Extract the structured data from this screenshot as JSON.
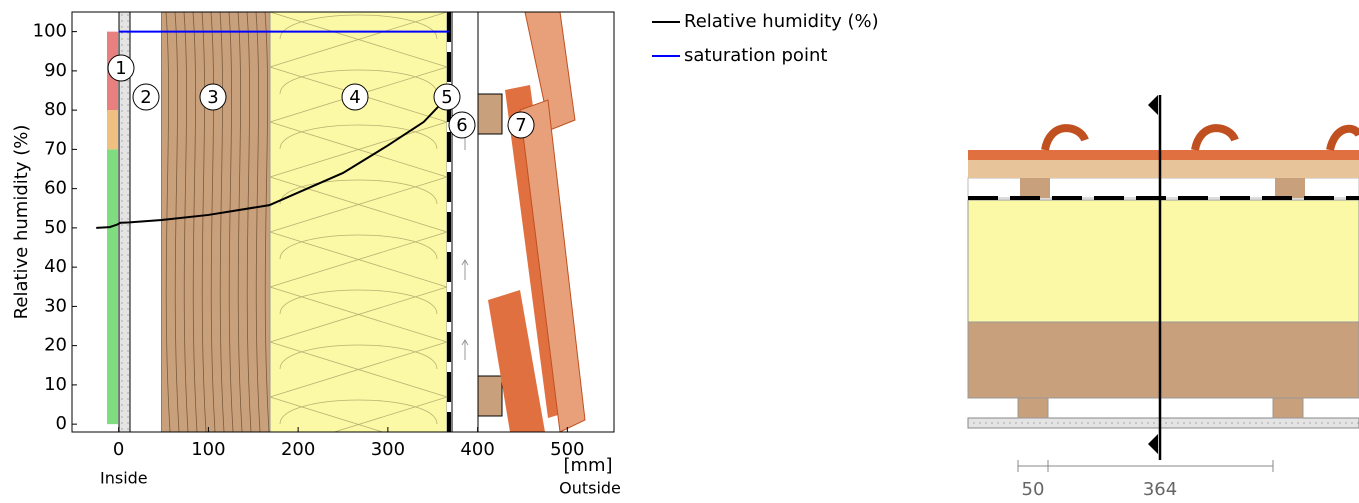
{
  "chart_data": {
    "type": "line",
    "y_label": "Relative humidity (%)",
    "x_unit_label": "[mm]",
    "inside_label": "Inside",
    "outside_label": "Outside",
    "xlim": [
      -52,
      552
    ],
    "ylim": [
      -2,
      105
    ],
    "xticks": [
      0,
      100,
      200,
      300,
      400,
      500
    ],
    "yticks": [
      0,
      10,
      20,
      30,
      40,
      50,
      60,
      70,
      80,
      90,
      100
    ],
    "series": [
      {
        "name": "Relative humidity (%)",
        "color": "#000000",
        "x": [
          -25,
          -10,
          -2,
          2,
          12,
          48,
          100,
          168,
          200,
          250,
          300,
          340,
          365,
          368
        ],
        "values": [
          50,
          50.2,
          50.8,
          51.3,
          51.4,
          52,
          53.3,
          55.8,
          59,
          64,
          71,
          77,
          83,
          83.5
        ]
      },
      {
        "name": "saturation point",
        "color": "#0000ff",
        "x": [
          0,
          368
        ],
        "values": [
          100,
          100
        ]
      }
    ],
    "zones": [
      {
        "from": 0,
        "to": 70,
        "color": "#7fdc7f"
      },
      {
        "from": 70,
        "to": 80,
        "color": "#f0c080"
      },
      {
        "from": 80,
        "to": 100,
        "color": "#e88080"
      }
    ],
    "layer_labels": [
      "1",
      "2",
      "3",
      "4",
      "5",
      "6",
      "7"
    ]
  },
  "section": {
    "dimensions": [
      "50",
      "364"
    ]
  }
}
